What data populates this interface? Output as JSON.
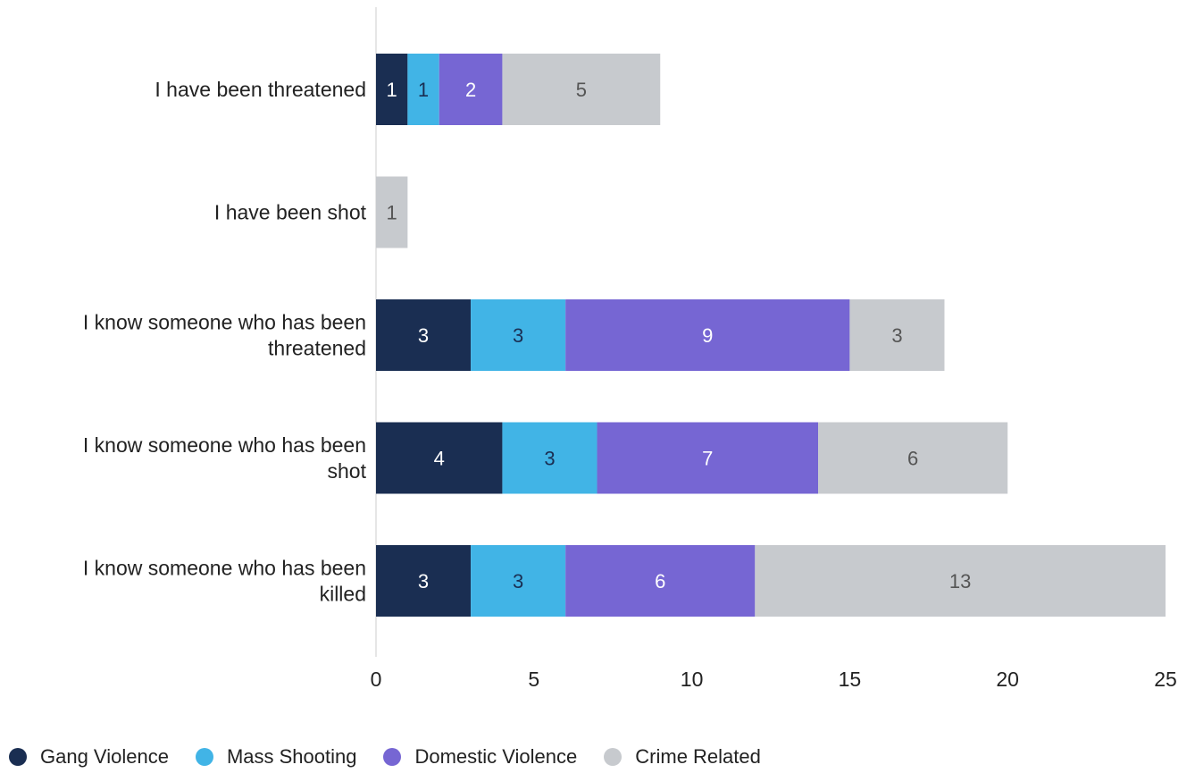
{
  "chart_data": {
    "type": "bar",
    "orientation": "horizontal",
    "stacked": true,
    "categories": [
      [
        "I have been threatened"
      ],
      [
        "I have been shot"
      ],
      [
        "I know someone who has been",
        "threatened"
      ],
      [
        "I know someone who has been",
        "shot"
      ],
      [
        "I know someone who has been",
        "killed"
      ]
    ],
    "series": [
      {
        "name": "Gang Violence",
        "color": "#1a2e52",
        "label_color": "#ffffff",
        "values": [
          1,
          0,
          3,
          4,
          3
        ]
      },
      {
        "name": "Mass Shooting",
        "color": "#41b4e6",
        "label_color": "#1a2e52",
        "values": [
          1,
          0,
          3,
          3,
          3
        ]
      },
      {
        "name": "Domestic Violence",
        "color": "#7666d3",
        "label_color": "#ffffff",
        "values": [
          2,
          0,
          9,
          7,
          6
        ]
      },
      {
        "name": "Crime Related",
        "color": "#c7cace",
        "label_color": "#555555",
        "values": [
          5,
          1,
          3,
          6,
          13
        ]
      }
    ],
    "xlim": [
      0,
      25
    ],
    "xticks": [
      0,
      5,
      10,
      15,
      20,
      25
    ],
    "grid": false,
    "legend_position": "bottom-left",
    "title": "",
    "xlabel": "",
    "ylabel": ""
  }
}
